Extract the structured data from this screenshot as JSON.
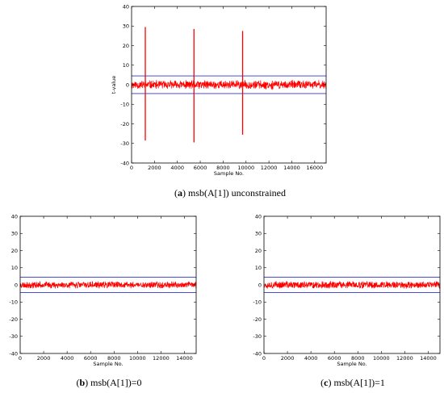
{
  "chart_data": [
    {
      "type": "line",
      "panel": "a",
      "caption_label": "a",
      "caption_text": "msb(A[1]) unconstrained",
      "xlabel": "Sample No.",
      "ylabel": "t-value",
      "xlim": [
        0,
        17000
      ],
      "ylim": [
        -40,
        40
      ],
      "xticks": [
        0,
        2000,
        4000,
        6000,
        8000,
        10000,
        12000,
        14000,
        16000
      ],
      "yticks": [
        -40,
        -30,
        -20,
        -10,
        0,
        10,
        20,
        30,
        40
      ],
      "thresholds": [
        4.5,
        -4.5
      ],
      "noise_amplitude": 2.5,
      "spikes": [
        {
          "x": 1200,
          "max": 29.5,
          "min": -28.5
        },
        {
          "x": 5450,
          "max": 28.5,
          "min": -29.5
        },
        {
          "x": 9700,
          "max": 27.5,
          "min": -25.5
        }
      ],
      "colors": {
        "trace": "#ff0000",
        "threshold": "#3333cc"
      }
    },
    {
      "type": "line",
      "panel": "b",
      "caption_label": "b",
      "caption_text": "msb(A[1])=0",
      "xlabel": "Sample No.",
      "ylabel": "",
      "xlim": [
        0,
        15000
      ],
      "ylim": [
        -40,
        40
      ],
      "xticks": [
        0,
        2000,
        4000,
        6000,
        8000,
        10000,
        12000,
        14000
      ],
      "yticks": [
        -40,
        -30,
        -20,
        -10,
        0,
        10,
        20,
        30,
        40
      ],
      "thresholds": [
        4.5,
        -4.5
      ],
      "noise_amplitude": 2.2,
      "spikes": [],
      "colors": {
        "trace": "#ff0000",
        "threshold": "#3333cc"
      }
    },
    {
      "type": "line",
      "panel": "c",
      "caption_label": "c",
      "caption_text": "msb(A[1])=1",
      "xlabel": "Sample No.",
      "ylabel": "",
      "xlim": [
        0,
        15000
      ],
      "ylim": [
        -40,
        40
      ],
      "xticks": [
        0,
        2000,
        4000,
        6000,
        8000,
        10000,
        12000,
        14000
      ],
      "yticks": [
        -40,
        -30,
        -20,
        -10,
        0,
        10,
        20,
        30,
        40
      ],
      "thresholds": [
        4.5,
        -4.5
      ],
      "noise_amplitude": 2.4,
      "spikes": [],
      "colors": {
        "trace": "#ff0000",
        "threshold": "#3333cc"
      }
    }
  ]
}
